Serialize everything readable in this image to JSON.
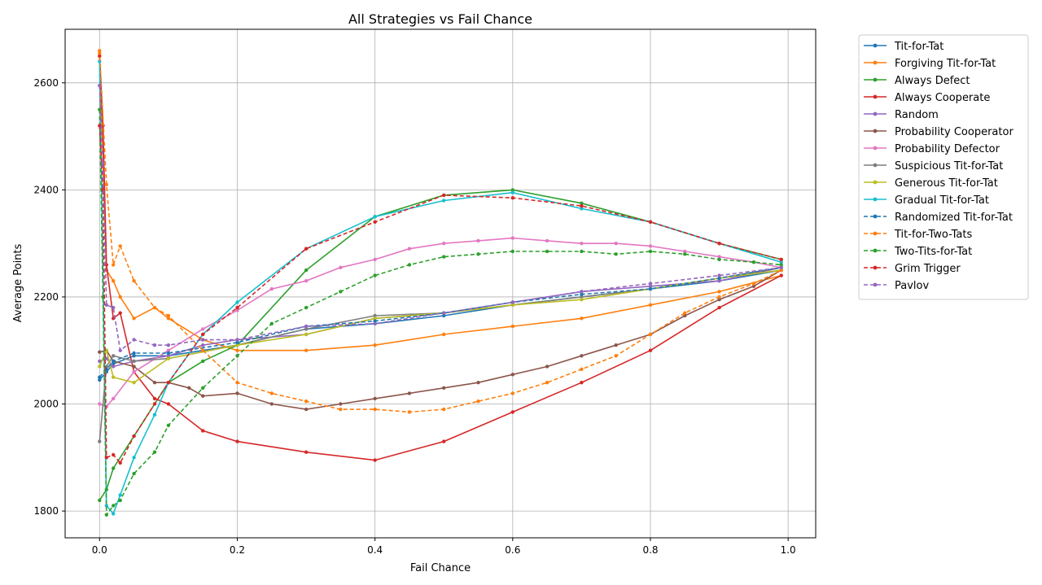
{
  "chart_data": {
    "type": "line",
    "title": "All Strategies vs Fail Chance",
    "xlabel": "Fail Chance",
    "ylabel": "Average Points",
    "xlim": [
      -0.05,
      1.04
    ],
    "ylim": [
      1750,
      2700
    ],
    "xticks": [
      0.0,
      0.2,
      0.4,
      0.6,
      0.8,
      1.0
    ],
    "xtick_labels": [
      "0.0",
      "0.2",
      "0.4",
      "0.6",
      "0.8",
      "1.0"
    ],
    "yticks": [
      1800,
      2000,
      2200,
      2400,
      2600
    ],
    "ytick_labels": [
      "1800",
      "2000",
      "2200",
      "2400",
      "2600"
    ],
    "grid": true,
    "legend_position": "outside-right",
    "series": [
      {
        "name": "Tit-for-Tat",
        "color": "#1f77b4",
        "style": "solid",
        "x": [
          0.0,
          0.01,
          0.02,
          0.05,
          0.1,
          0.15,
          0.2,
          0.3,
          0.4,
          0.5,
          0.6,
          0.7,
          0.8,
          0.9,
          0.99
        ],
        "y": [
          2045,
          2060,
          2075,
          2090,
          2090,
          2100,
          2110,
          2140,
          2150,
          2165,
          2185,
          2200,
          2215,
          2230,
          2250
        ]
      },
      {
        "name": "Forgiving Tit-for-Tat",
        "color": "#ff7f0e",
        "style": "solid",
        "x": [
          0.0,
          0.01,
          0.02,
          0.03,
          0.05,
          0.08,
          0.1,
          0.15,
          0.2,
          0.3,
          0.4,
          0.5,
          0.6,
          0.7,
          0.8,
          0.9,
          0.99
        ],
        "y": [
          2655,
          2250,
          2230,
          2200,
          2160,
          2180,
          2160,
          2120,
          2100,
          2100,
          2110,
          2130,
          2145,
          2160,
          2185,
          2210,
          2240
        ]
      },
      {
        "name": "Always Defect",
        "color": "#2ca02c",
        "style": "solid",
        "x": [
          0.0,
          0.01,
          0.02,
          0.05,
          0.1,
          0.15,
          0.2,
          0.3,
          0.4,
          0.5,
          0.6,
          0.7,
          0.8,
          0.9,
          0.99
        ],
        "y": [
          1820,
          1840,
          1880,
          1940,
          2040,
          2080,
          2110,
          2250,
          2350,
          2390,
          2400,
          2375,
          2340,
          2300,
          2270
        ]
      },
      {
        "name": "Always Cooperate",
        "color": "#d62728",
        "style": "solid",
        "x": [
          0.0,
          0.005,
          0.01,
          0.02,
          0.03,
          0.05,
          0.08,
          0.1,
          0.15,
          0.2,
          0.3,
          0.4,
          0.5,
          0.6,
          0.7,
          0.8,
          0.9,
          0.99
        ],
        "y": [
          2650,
          2520,
          2260,
          2160,
          2170,
          2060,
          2010,
          2000,
          1950,
          1930,
          1910,
          1895,
          1930,
          1985,
          2040,
          2100,
          2180,
          2240
        ]
      },
      {
        "name": "Random",
        "color": "#9467bd",
        "style": "solid",
        "x": [
          0.0,
          0.01,
          0.02,
          0.05,
          0.1,
          0.15,
          0.2,
          0.3,
          0.4,
          0.5,
          0.6,
          0.7,
          0.8,
          0.9,
          0.99
        ],
        "y": [
          2080,
          2085,
          2070,
          2080,
          2090,
          2110,
          2120,
          2130,
          2160,
          2170,
          2190,
          2210,
          2220,
          2230,
          2255
        ]
      },
      {
        "name": "Probability Cooperator",
        "color": "#8c564b",
        "style": "solid",
        "x": [
          0.0,
          0.01,
          0.02,
          0.05,
          0.08,
          0.1,
          0.13,
          0.15,
          0.2,
          0.25,
          0.3,
          0.35,
          0.4,
          0.45,
          0.5,
          0.55,
          0.6,
          0.65,
          0.7,
          0.75,
          0.8,
          0.85,
          0.9,
          0.95,
          0.99
        ],
        "y": [
          2097,
          2100,
          2080,
          2070,
          2040,
          2040,
          2030,
          2015,
          2020,
          2000,
          1990,
          2000,
          2010,
          2020,
          2030,
          2040,
          2055,
          2070,
          2090,
          2110,
          2130,
          2165,
          2195,
          2220,
          2250
        ]
      },
      {
        "name": "Probability Defector",
        "color": "#e377c2",
        "style": "solid",
        "x": [
          0.0,
          0.01,
          0.02,
          0.05,
          0.1,
          0.15,
          0.2,
          0.25,
          0.3,
          0.35,
          0.4,
          0.45,
          0.5,
          0.55,
          0.6,
          0.65,
          0.7,
          0.75,
          0.8,
          0.85,
          0.9,
          0.95,
          0.99
        ],
        "y": [
          2000,
          1995,
          2010,
          2060,
          2100,
          2140,
          2175,
          2215,
          2230,
          2255,
          2270,
          2290,
          2300,
          2305,
          2310,
          2305,
          2300,
          2300,
          2295,
          2285,
          2275,
          2265,
          2255
        ]
      },
      {
        "name": "Suspicious Tit-for-Tat",
        "color": "#7f7f7f",
        "style": "solid",
        "x": [
          0.0,
          0.01,
          0.02,
          0.05,
          0.1,
          0.2,
          0.3,
          0.4,
          0.5,
          0.6,
          0.7,
          0.8,
          0.9,
          0.99
        ],
        "y": [
          1930,
          2070,
          2090,
          2080,
          2085,
          2110,
          2140,
          2165,
          2170,
          2185,
          2200,
          2215,
          2235,
          2255
        ]
      },
      {
        "name": "Generous Tit-for-Tat",
        "color": "#bcbd22",
        "style": "solid",
        "x": [
          0.0,
          0.01,
          0.02,
          0.05,
          0.1,
          0.2,
          0.3,
          0.4,
          0.5,
          0.6,
          0.7,
          0.8,
          0.9,
          0.99
        ],
        "y": [
          2070,
          2100,
          2050,
          2040,
          2085,
          2110,
          2130,
          2160,
          2170,
          2185,
          2195,
          2215,
          2235,
          2250
        ]
      },
      {
        "name": "Gradual Tit-for-Tat",
        "color": "#17becf",
        "style": "solid",
        "x": [
          0.0,
          0.01,
          0.02,
          0.03,
          0.05,
          0.08,
          0.1,
          0.15,
          0.2,
          0.3,
          0.4,
          0.5,
          0.6,
          0.7,
          0.8,
          0.9,
          0.99
        ],
        "y": [
          2640,
          1810,
          1795,
          1830,
          1900,
          1980,
          2040,
          2130,
          2190,
          2290,
          2350,
          2380,
          2395,
          2365,
          2340,
          2300,
          2265
        ]
      },
      {
        "name": "Randomized Tit-for-Tat",
        "color": "#1f77b4",
        "style": "dashed",
        "x": [
          0.0,
          0.01,
          0.02,
          0.05,
          0.1,
          0.2,
          0.3,
          0.4,
          0.5,
          0.6,
          0.7,
          0.8,
          0.9,
          0.99
        ],
        "y": [
          2050,
          2065,
          2080,
          2095,
          2095,
          2115,
          2145,
          2155,
          2170,
          2190,
          2205,
          2215,
          2235,
          2255
        ]
      },
      {
        "name": "Tit-for-Two-Tats",
        "color": "#ff7f0e",
        "style": "dashed",
        "x": [
          0.0,
          0.01,
          0.02,
          0.03,
          0.05,
          0.08,
          0.1,
          0.15,
          0.2,
          0.25,
          0.3,
          0.35,
          0.4,
          0.45,
          0.5,
          0.55,
          0.6,
          0.65,
          0.7,
          0.75,
          0.8,
          0.85,
          0.9,
          0.95,
          0.99
        ],
        "y": [
          2660,
          2410,
          2260,
          2295,
          2230,
          2180,
          2165,
          2100,
          2040,
          2020,
          2005,
          1990,
          1990,
          1985,
          1990,
          2005,
          2020,
          2040,
          2065,
          2090,
          2130,
          2170,
          2200,
          2225,
          2250
        ]
      },
      {
        "name": "Two-Tits-for-Tat",
        "color": "#2ca02c",
        "style": "dashed",
        "x": [
          0.0,
          0.005,
          0.01,
          0.02,
          0.03,
          0.05,
          0.08,
          0.1,
          0.15,
          0.2,
          0.25,
          0.3,
          0.35,
          0.4,
          0.45,
          0.5,
          0.55,
          0.6,
          0.65,
          0.7,
          0.75,
          0.8,
          0.85,
          0.9,
          0.95,
          0.99
        ],
        "y": [
          2550,
          2200,
          1793,
          1810,
          1820,
          1870,
          1910,
          1960,
          2030,
          2090,
          2150,
          2180,
          2210,
          2240,
          2260,
          2275,
          2280,
          2285,
          2285,
          2285,
          2280,
          2285,
          2280,
          2270,
          2265,
          2260
        ]
      },
      {
        "name": "Grim Trigger",
        "color": "#d62728",
        "style": "dashed",
        "x": [
          0.0,
          0.005,
          0.01,
          0.02,
          0.03,
          0.05,
          0.08,
          0.1,
          0.15,
          0.2,
          0.3,
          0.4,
          0.5,
          0.6,
          0.7,
          0.8,
          0.9,
          0.99
        ],
        "y": [
          2520,
          2400,
          1900,
          1905,
          1890,
          1940,
          2000,
          2040,
          2130,
          2180,
          2290,
          2340,
          2390,
          2385,
          2370,
          2340,
          2300,
          2270
        ]
      },
      {
        "name": "Pavlov",
        "color": "#9467bd",
        "style": "dashed",
        "x": [
          0.0,
          0.005,
          0.01,
          0.02,
          0.03,
          0.05,
          0.08,
          0.1,
          0.15,
          0.2,
          0.3,
          0.4,
          0.5,
          0.6,
          0.7,
          0.8,
          0.9,
          0.99
        ],
        "y": [
          2595,
          2450,
          2185,
          2180,
          2100,
          2120,
          2110,
          2110,
          2120,
          2120,
          2145,
          2150,
          2170,
          2190,
          2210,
          2225,
          2240,
          2255
        ]
      }
    ]
  }
}
